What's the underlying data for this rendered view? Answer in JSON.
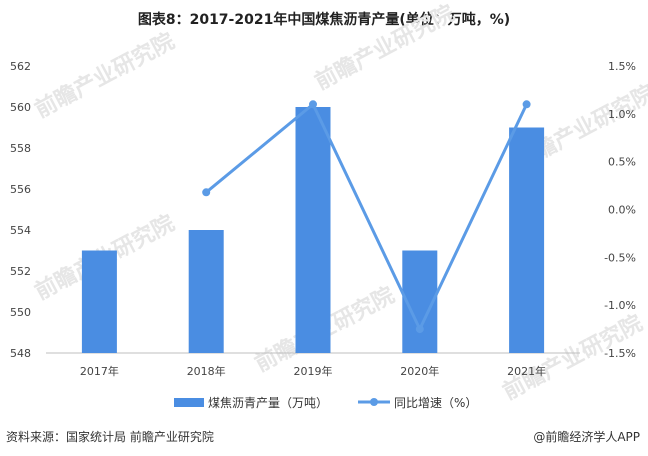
{
  "header": {
    "title": "图表8：2017-2021年中国煤焦沥青产量(单位：万吨，%)"
  },
  "footer": {
    "source": "资料来源：国家统计局 前瞻产业研究院",
    "credit": "@前瞻经济学人APP"
  },
  "watermark": {
    "text": "前瞻产业研究院"
  },
  "chart_data": {
    "type": "bar",
    "title": "图表8：2017-2021年中国煤焦沥青产量(单位：万吨，%)",
    "categories": [
      "2017年",
      "2018年",
      "2019年",
      "2020年",
      "2021年"
    ],
    "series": [
      {
        "name": "煤焦沥青产量（万吨）",
        "type": "bar",
        "axis": "left",
        "color": "#4a8de2",
        "values": [
          553,
          554,
          560,
          553,
          559
        ]
      },
      {
        "name": "同比增速（%）",
        "type": "line",
        "axis": "right",
        "color": "#5b9be6",
        "values": [
          null,
          0.18,
          1.1,
          -1.25,
          1.1
        ]
      }
    ],
    "y_left": {
      "min": 548,
      "max": 562,
      "ticks": [
        548,
        550,
        552,
        554,
        556,
        558,
        560,
        562
      ]
    },
    "y_right": {
      "min": -1.5,
      "max": 1.5,
      "ticks": [
        -1.5,
        -1.0,
        -0.5,
        0.0,
        0.5,
        1.0,
        1.5
      ],
      "tick_labels": [
        "-1.5%",
        "-1.0%",
        "-0.5%",
        "0.0%",
        "0.5%",
        "1.0%",
        "1.5%"
      ]
    },
    "legend_position": "bottom",
    "grid": false
  }
}
